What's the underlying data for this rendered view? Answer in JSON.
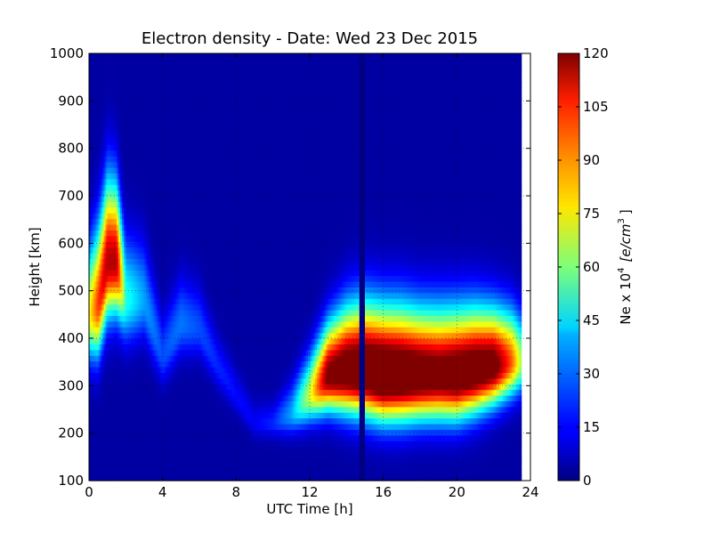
{
  "chart_data": {
    "type": "heatmap",
    "title": "Electron density - Date: Wed 23 Dec 2015",
    "xlabel": "UTC Time [h]",
    "ylabel": "Height [km]",
    "xlim": [
      0,
      24
    ],
    "ylim": [
      100,
      1000
    ],
    "x_ticks": [
      "0",
      "4",
      "8",
      "12",
      "16",
      "20",
      "24"
    ],
    "y_ticks": [
      "100",
      "200",
      "300",
      "400",
      "500",
      "600",
      "700",
      "800",
      "900",
      "1000"
    ],
    "grid": true,
    "colormap": "jet",
    "data_extent_hours": [
      0,
      23.5
    ],
    "colorbar": {
      "label": "Ne x 10^4 [e/cm^3]",
      "label_base": "Ne x 10",
      "label_exp": "4",
      "label_unit": "[e/cm",
      "label_unit_exp": "3",
      "label_close": "]",
      "min": 0,
      "max": 120,
      "ticks": [
        "0",
        "15",
        "30",
        "45",
        "60",
        "75",
        "90",
        "105",
        "120"
      ]
    },
    "profiles": [
      {
        "t": 0.0,
        "peak_km": 450,
        "peak_value": 70,
        "width_km": 130
      },
      {
        "t": 0.5,
        "peak_km": 470,
        "peak_value": 95,
        "width_km": 150
      },
      {
        "t": 1.0,
        "peak_km": 560,
        "peak_value": 110,
        "width_km": 160
      },
      {
        "t": 1.5,
        "peak_km": 560,
        "peak_value": 110,
        "width_km": 150
      },
      {
        "t": 2.0,
        "peak_km": 480,
        "peak_value": 45,
        "width_km": 120
      },
      {
        "t": 3.0,
        "peak_km": 480,
        "peak_value": 30,
        "width_km": 110
      },
      {
        "t": 4.0,
        "peak_km": 360,
        "peak_value": 20,
        "width_km": 80
      },
      {
        "t": 5.0,
        "peak_km": 430,
        "peak_value": 25,
        "width_km": 90
      },
      {
        "t": 6.0,
        "peak_km": 420,
        "peak_value": 20,
        "width_km": 80
      },
      {
        "t": 7.0,
        "peak_km": 340,
        "peak_value": 15,
        "width_km": 60
      },
      {
        "t": 8.0,
        "peak_km": 280,
        "peak_value": 12,
        "width_km": 50
      },
      {
        "t": 9.0,
        "peak_km": 220,
        "peak_value": 10,
        "width_km": 40
      },
      {
        "t": 10.0,
        "peak_km": 220,
        "peak_value": 15,
        "width_km": 40
      },
      {
        "t": 11.0,
        "peak_km": 240,
        "peak_value": 30,
        "width_km": 60
      },
      {
        "t": 12.0,
        "peak_km": 280,
        "peak_value": 65,
        "width_km": 80
      },
      {
        "t": 13.0,
        "peak_km": 320,
        "peak_value": 120,
        "width_km": 100
      },
      {
        "t": 14.0,
        "peak_km": 330,
        "peak_value": 130,
        "width_km": 120
      },
      {
        "t": 15.0,
        "peak_km": 330,
        "peak_value": 135,
        "width_km": 130
      },
      {
        "t": 16.0,
        "peak_km": 320,
        "peak_value": 140,
        "width_km": 130
      },
      {
        "t": 17.0,
        "peak_km": 320,
        "peak_value": 135,
        "width_km": 130
      },
      {
        "t": 18.0,
        "peak_km": 320,
        "peak_value": 130,
        "width_km": 125
      },
      {
        "t": 19.0,
        "peak_km": 320,
        "peak_value": 125,
        "width_km": 125
      },
      {
        "t": 20.0,
        "peak_km": 320,
        "peak_value": 130,
        "width_km": 125
      },
      {
        "t": 21.0,
        "peak_km": 330,
        "peak_value": 130,
        "width_km": 120
      },
      {
        "t": 22.0,
        "peak_km": 340,
        "peak_value": 125,
        "width_km": 110
      },
      {
        "t": 23.0,
        "peak_km": 350,
        "peak_value": 90,
        "width_km": 100
      },
      {
        "t": 23.5,
        "peak_km": 350,
        "peak_value": 60,
        "width_km": 90
      }
    ],
    "gaps_hours": [
      14.7,
      15.0
    ]
  }
}
